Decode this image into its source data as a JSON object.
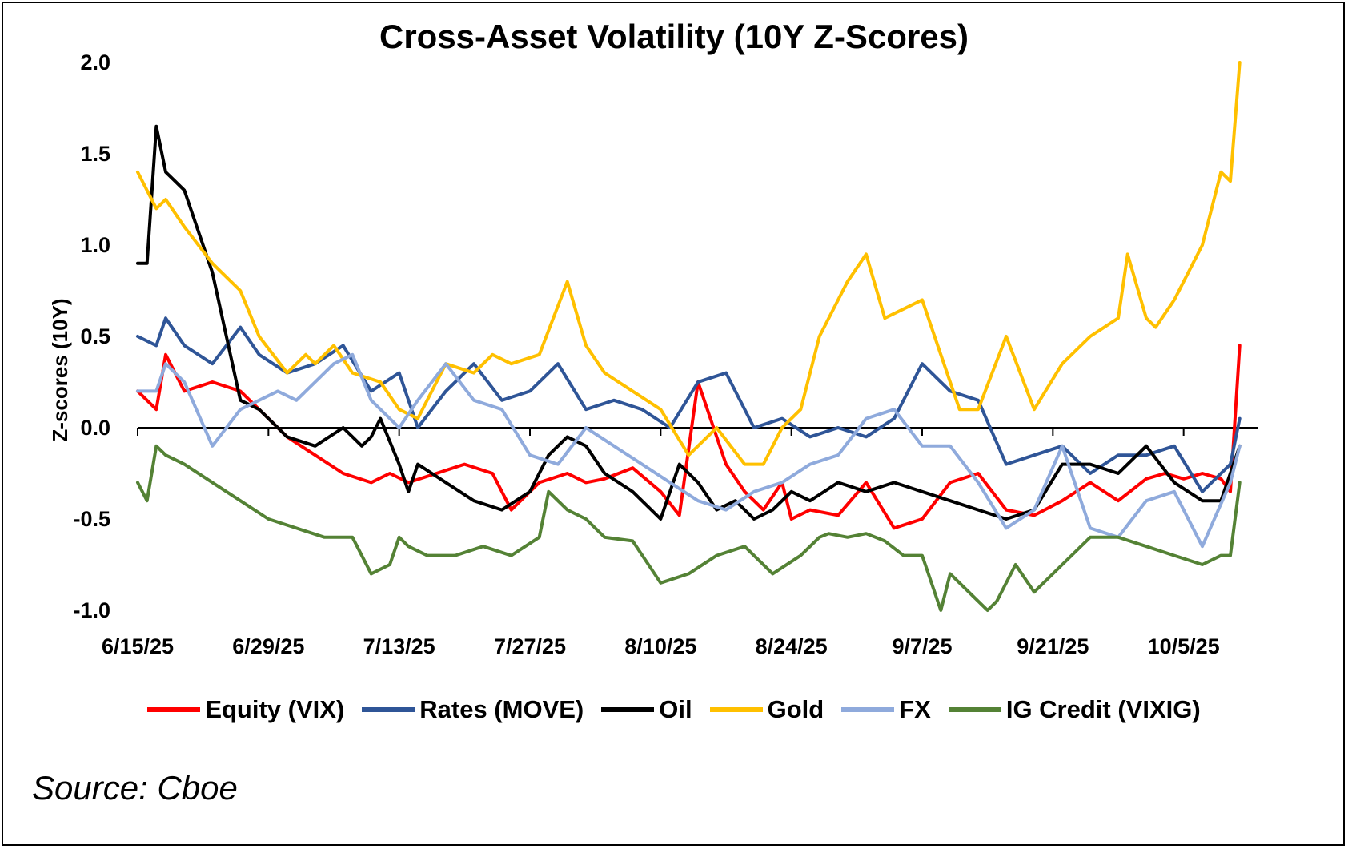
{
  "chart_data": {
    "type": "line",
    "title": "Cross-Asset Volatility (10Y Z-Scores)",
    "xlabel": "",
    "ylabel": "Z-scores (10Y)",
    "ylim": [
      -1.0,
      2.0
    ],
    "yticks": [
      "2.0",
      "1.5",
      "1.0",
      "0.5",
      "0.0",
      "-0.5",
      "-1.0"
    ],
    "ytick_values": [
      2.0,
      1.5,
      1.0,
      0.5,
      0.0,
      -0.5,
      -1.0
    ],
    "xlim": [
      0,
      120
    ],
    "xticks": [
      "6/15/25",
      "6/29/25",
      "7/13/25",
      "7/27/25",
      "8/10/25",
      "8/24/25",
      "9/7/25",
      "9/21/25",
      "10/5/25"
    ],
    "xtick_values": [
      0,
      14,
      28,
      42,
      56,
      70,
      84,
      98,
      112
    ],
    "legend_position": "bottom",
    "source": "Source: Cboe",
    "series": [
      {
        "name": "Equity (VIX)",
        "color": "#ff0000",
        "x": [
          0,
          2,
          3,
          5,
          8,
          11,
          13,
          16,
          19,
          22,
          25,
          27,
          29,
          32,
          35,
          38,
          40,
          43,
          46,
          48,
          50,
          53,
          56,
          58,
          60,
          63,
          65,
          67,
          69,
          70,
          72,
          75,
          78,
          81,
          84,
          87,
          90,
          93,
          96,
          99,
          102,
          105,
          108,
          110,
          112,
          114,
          116,
          117,
          118
        ],
        "y": [
          0.2,
          0.1,
          0.4,
          0.2,
          0.25,
          0.2,
          0.1,
          -0.05,
          -0.15,
          -0.25,
          -0.3,
          -0.25,
          -0.3,
          -0.25,
          -0.2,
          -0.25,
          -0.45,
          -0.3,
          -0.25,
          -0.3,
          -0.28,
          -0.22,
          -0.35,
          -0.48,
          0.25,
          -0.2,
          -0.35,
          -0.45,
          -0.3,
          -0.5,
          -0.45,
          -0.48,
          -0.3,
          -0.55,
          -0.5,
          -0.3,
          -0.25,
          -0.45,
          -0.48,
          -0.4,
          -0.3,
          -0.4,
          -0.28,
          -0.25,
          -0.28,
          -0.25,
          -0.28,
          -0.35,
          0.45
        ]
      },
      {
        "name": "Rates (MOVE)",
        "color": "#2f5597",
        "x": [
          0,
          2,
          3,
          5,
          8,
          11,
          13,
          16,
          19,
          22,
          25,
          28,
          30,
          33,
          36,
          39,
          42,
          45,
          48,
          51,
          54,
          57,
          60,
          63,
          66,
          69,
          72,
          75,
          78,
          81,
          84,
          87,
          90,
          93,
          96,
          99,
          102,
          105,
          108,
          111,
          114,
          117,
          118
        ],
        "y": [
          0.5,
          0.45,
          0.6,
          0.45,
          0.35,
          0.55,
          0.4,
          0.3,
          0.35,
          0.45,
          0.2,
          0.3,
          0.0,
          0.2,
          0.35,
          0.15,
          0.2,
          0.35,
          0.1,
          0.15,
          0.1,
          0.0,
          0.25,
          0.3,
          0.0,
          0.05,
          -0.05,
          0.0,
          -0.05,
          0.05,
          0.35,
          0.2,
          0.15,
          -0.2,
          -0.15,
          -0.1,
          -0.25,
          -0.15,
          -0.15,
          -0.1,
          -0.35,
          -0.2,
          0.05
        ]
      },
      {
        "name": "Oil",
        "color": "#000000",
        "x": [
          0,
          1,
          2,
          3,
          4,
          5,
          8,
          11,
          13,
          16,
          19,
          22,
          24,
          25,
          26,
          28,
          29,
          30,
          33,
          36,
          39,
          42,
          44,
          46,
          48,
          50,
          53,
          56,
          58,
          60,
          62,
          64,
          66,
          68,
          70,
          72,
          75,
          78,
          81,
          84,
          87,
          90,
          93,
          96,
          99,
          102,
          105,
          108,
          111,
          114,
          116,
          118
        ],
        "y": [
          0.9,
          0.9,
          1.65,
          1.4,
          1.35,
          1.3,
          0.85,
          0.15,
          0.1,
          -0.05,
          -0.1,
          0.0,
          -0.1,
          -0.05,
          0.05,
          -0.2,
          -0.35,
          -0.2,
          -0.3,
          -0.4,
          -0.45,
          -0.35,
          -0.15,
          -0.05,
          -0.1,
          -0.25,
          -0.35,
          -0.5,
          -0.2,
          -0.3,
          -0.45,
          -0.4,
          -0.5,
          -0.45,
          -0.35,
          -0.4,
          -0.3,
          -0.35,
          -0.3,
          -0.35,
          -0.4,
          -0.45,
          -0.5,
          -0.45,
          -0.2,
          -0.2,
          -0.25,
          -0.1,
          -0.3,
          -0.4,
          -0.4,
          -0.1
        ]
      },
      {
        "name": "Gold",
        "color": "#ffc000",
        "x": [
          0,
          2,
          3,
          5,
          8,
          11,
          13,
          16,
          18,
          19,
          21,
          23,
          26,
          28,
          30,
          33,
          36,
          38,
          40,
          43,
          46,
          48,
          50,
          53,
          56,
          59,
          62,
          65,
          67,
          69,
          71,
          73,
          76,
          78,
          80,
          82,
          84,
          86,
          88,
          90,
          93,
          96,
          99,
          102,
          105,
          106,
          108,
          109,
          111,
          113,
          114,
          116,
          117,
          118
        ],
        "y": [
          1.4,
          1.2,
          1.25,
          1.1,
          0.9,
          0.75,
          0.5,
          0.3,
          0.4,
          0.35,
          0.45,
          0.3,
          0.25,
          0.1,
          0.05,
          0.35,
          0.3,
          0.4,
          0.35,
          0.4,
          0.8,
          0.45,
          0.3,
          0.2,
          0.1,
          -0.15,
          0.0,
          -0.2,
          -0.2,
          0.0,
          0.1,
          0.5,
          0.8,
          0.95,
          0.6,
          0.65,
          0.7,
          0.4,
          0.1,
          0.1,
          0.5,
          0.1,
          0.35,
          0.5,
          0.6,
          0.95,
          0.6,
          0.55,
          0.7,
          0.9,
          1.0,
          1.4,
          1.35,
          2.0
        ]
      },
      {
        "name": "FX",
        "color": "#8faadc",
        "x": [
          0,
          2,
          3,
          5,
          8,
          11,
          13,
          15,
          17,
          19,
          21,
          23,
          25,
          28,
          30,
          33,
          36,
          39,
          42,
          45,
          48,
          51,
          54,
          57,
          60,
          63,
          66,
          69,
          72,
          75,
          78,
          81,
          84,
          87,
          90,
          93,
          96,
          99,
          102,
          105,
          108,
          111,
          114,
          117,
          118
        ],
        "y": [
          0.2,
          0.2,
          0.35,
          0.25,
          -0.1,
          0.1,
          0.15,
          0.2,
          0.15,
          0.25,
          0.35,
          0.4,
          0.15,
          0.0,
          0.15,
          0.35,
          0.15,
          0.1,
          -0.15,
          -0.2,
          0.0,
          -0.1,
          -0.2,
          -0.3,
          -0.4,
          -0.45,
          -0.35,
          -0.3,
          -0.2,
          -0.15,
          0.05,
          0.1,
          -0.1,
          -0.1,
          -0.3,
          -0.55,
          -0.45,
          -0.1,
          -0.55,
          -0.6,
          -0.4,
          -0.35,
          -0.65,
          -0.3,
          -0.1
        ]
      },
      {
        "name": "IG Credit (VIXIG)",
        "color": "#548235",
        "x": [
          0,
          1,
          2,
          3,
          5,
          8,
          11,
          14,
          17,
          20,
          23,
          25,
          27,
          28,
          29,
          31,
          34,
          37,
          40,
          43,
          44,
          46,
          48,
          50,
          53,
          56,
          59,
          62,
          65,
          68,
          71,
          73,
          74,
          76,
          78,
          80,
          82,
          84,
          86,
          87,
          89,
          91,
          92,
          94,
          96,
          99,
          102,
          105,
          108,
          111,
          114,
          116,
          117,
          118
        ],
        "y": [
          -0.3,
          -0.4,
          -0.1,
          -0.15,
          -0.2,
          -0.3,
          -0.4,
          -0.5,
          -0.55,
          -0.6,
          -0.6,
          -0.8,
          -0.75,
          -0.6,
          -0.65,
          -0.7,
          -0.7,
          -0.65,
          -0.7,
          -0.6,
          -0.35,
          -0.45,
          -0.5,
          -0.6,
          -0.62,
          -0.85,
          -0.8,
          -0.7,
          -0.65,
          -0.8,
          -0.7,
          -0.6,
          -0.58,
          -0.6,
          -0.58,
          -0.62,
          -0.7,
          -0.7,
          -1.0,
          -0.8,
          -0.9,
          -1.0,
          -0.95,
          -0.75,
          -0.9,
          -0.75,
          -0.6,
          -0.6,
          -0.65,
          -0.7,
          -0.75,
          -0.7,
          -0.7,
          -0.3
        ]
      }
    ]
  }
}
